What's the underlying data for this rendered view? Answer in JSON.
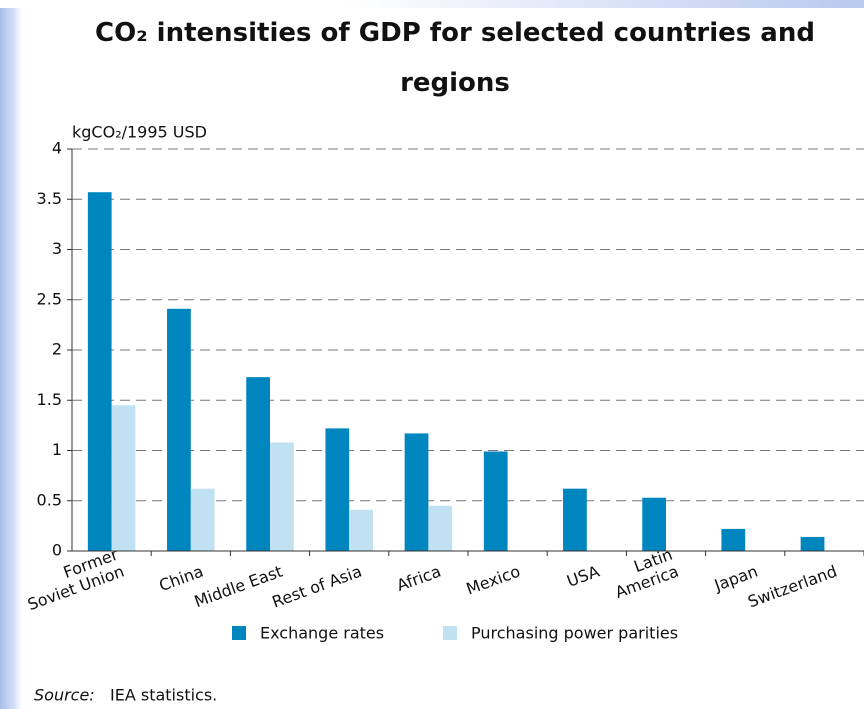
{
  "chart_data": {
    "type": "bar",
    "title": "CO₂ intensities of GDP for selected countries and regions",
    "y_axis_label": "kgCO₂/1995 USD",
    "categories": [
      "Former\nSoviet Union",
      "China",
      "Middle East",
      "Rest of Asia",
      "Africa",
      "Mexico",
      "USA",
      "Latin\nAmerica",
      "Japan",
      "Switzerland"
    ],
    "series": [
      {
        "name": "Exchange rates",
        "color": "#0086bf",
        "values": [
          3.57,
          2.41,
          1.73,
          1.22,
          1.17,
          0.99,
          0.62,
          0.53,
          0.22,
          0.14
        ]
      },
      {
        "name": "Purchasing power parities",
        "color": "#bfe1f2",
        "values": [
          1.45,
          0.62,
          1.08,
          0.41,
          0.45,
          null,
          null,
          null,
          null,
          null
        ]
      }
    ],
    "ylim": [
      0,
      4
    ],
    "yticks": [
      0,
      0.5,
      1,
      1.5,
      2,
      2.5,
      3,
      3.5,
      4
    ],
    "grid": true,
    "source_label": "Source:",
    "source": "IEA statistics."
  }
}
